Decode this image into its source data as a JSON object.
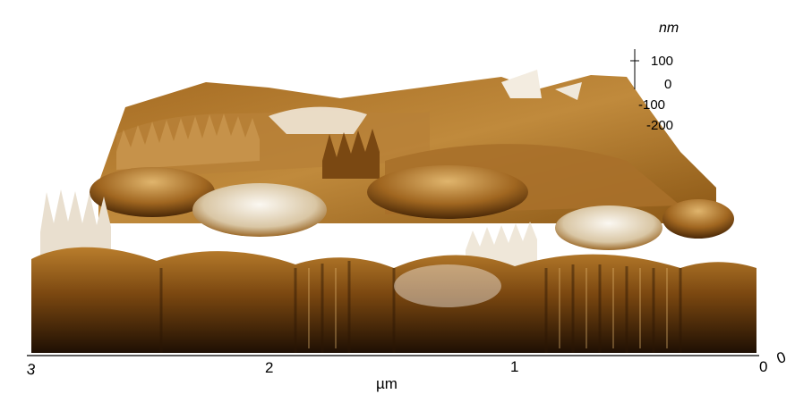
{
  "z_axis": {
    "unit": "nm",
    "ticks": [
      "100",
      "0",
      "-100",
      "-200"
    ]
  },
  "x_axis": {
    "unit": "µm",
    "ticks": [
      "3",
      "2",
      "1",
      "0"
    ],
    "corner_label": "0"
  },
  "colors": {
    "surface_dark": "#2a1604",
    "surface_mid": "#8a5612",
    "surface_light": "#c99447",
    "highlight": "#f4efe6",
    "background": "#ffffff"
  }
}
